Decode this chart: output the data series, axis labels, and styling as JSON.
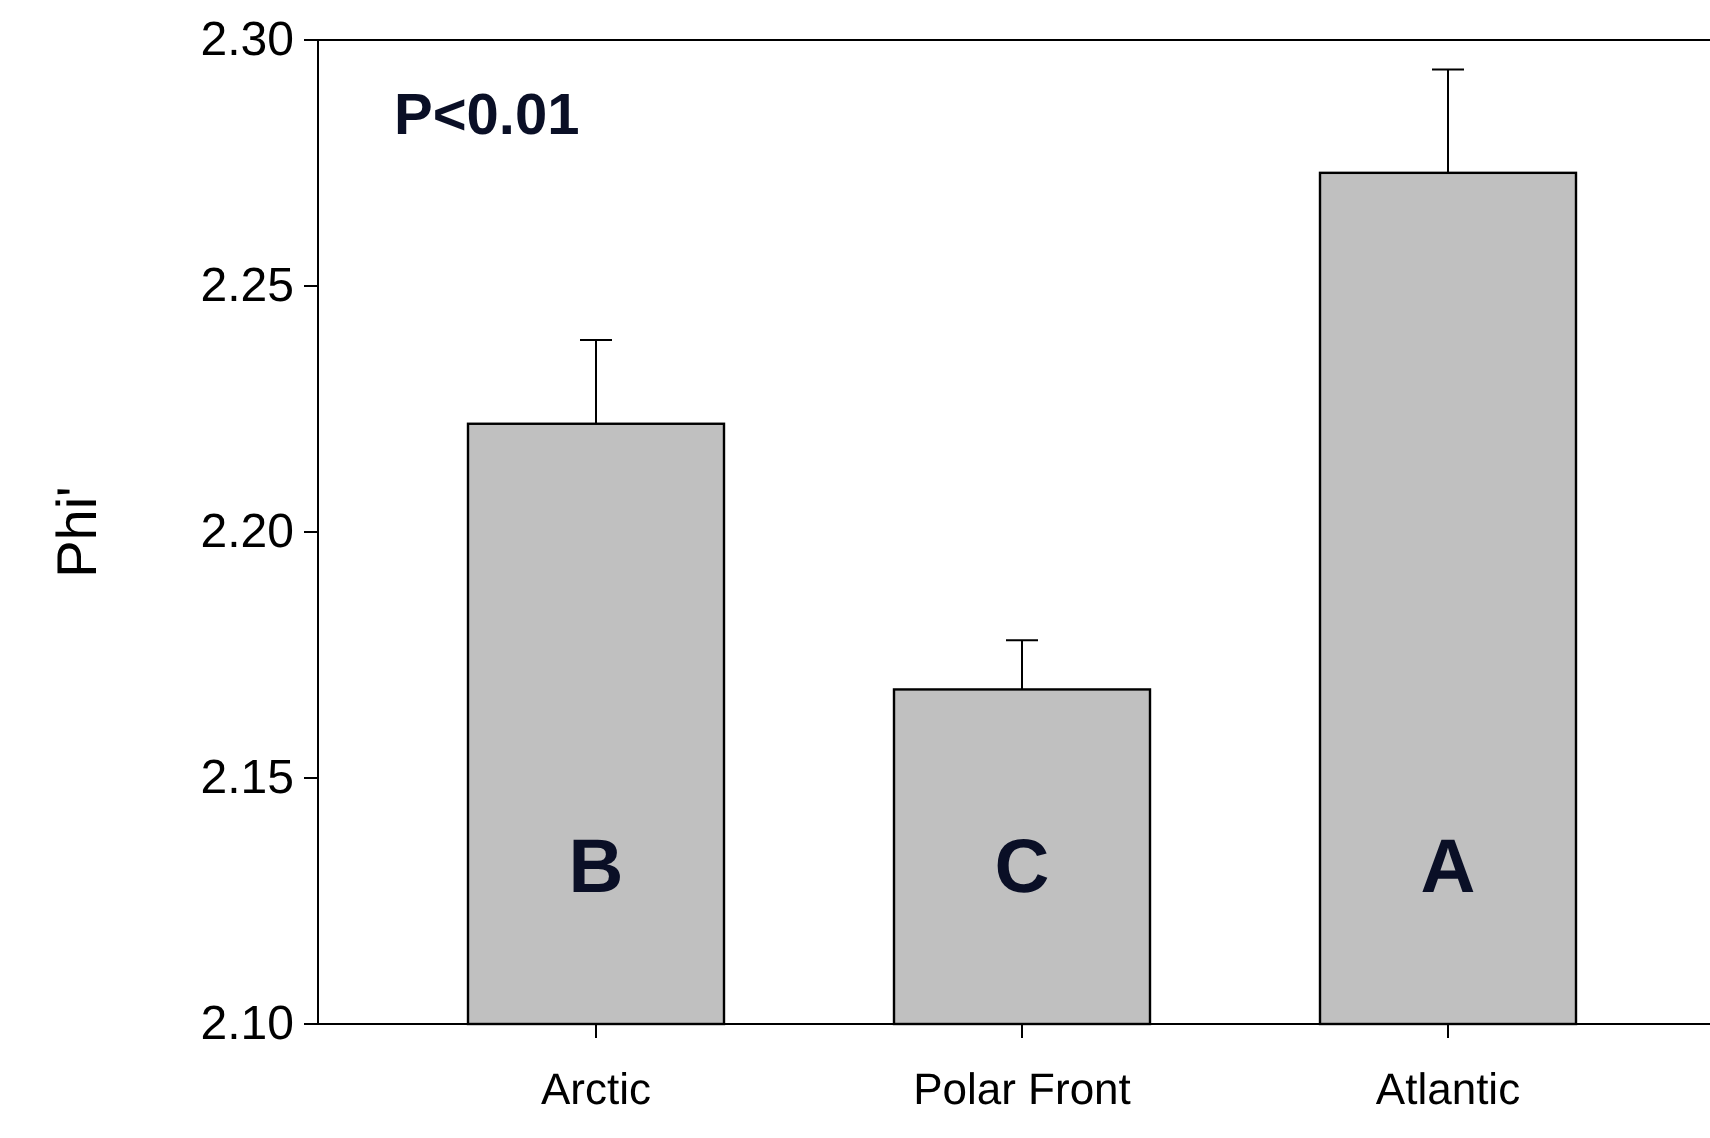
{
  "chart_data": {
    "type": "bar",
    "ylabel": "Phi'",
    "categories": [
      "Arctic",
      "Polar Front",
      "Atlantic"
    ],
    "values": [
      2.222,
      2.168,
      2.273
    ],
    "errors": [
      [
        2.222,
        2.239
      ],
      [
        2.168,
        2.178
      ],
      [
        2.273,
        2.294
      ]
    ],
    "color": "#c0c0c0",
    "ylim": [
      2.1,
      2.3
    ],
    "yticks": [
      {
        "value": 2.1,
        "label": "2.10"
      },
      {
        "value": 2.15,
        "label": "2.15"
      },
      {
        "value": 2.2,
        "label": "2.20"
      },
      {
        "value": 2.25,
        "label": "2.25"
      },
      {
        "value": 2.3,
        "label": "2.30"
      }
    ],
    "annotations": [
      "P<0.01",
      "B",
      "C",
      "A"
    ]
  }
}
